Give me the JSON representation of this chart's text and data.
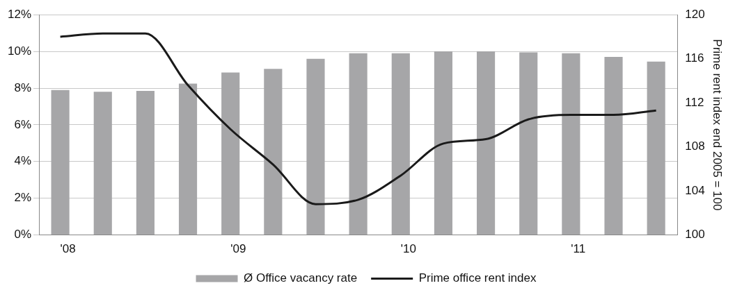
{
  "chart_data": {
    "type": "bar",
    "categories": [
      "'08",
      null,
      null,
      null,
      "'09",
      null,
      null,
      null,
      "'10",
      null,
      null,
      null,
      "'11",
      null,
      null
    ],
    "series": [
      {
        "name": "Ø Office vacancy rate",
        "color": "#a6a6a8",
        "values": [
          7.9,
          7.8,
          7.85,
          8.25,
          8.85,
          9.05,
          9.6,
          9.9,
          9.9,
          10.0,
          10.0,
          9.95,
          9.9,
          9.7,
          9.45
        ]
      },
      {
        "name": "Prime office rent index",
        "type": "line",
        "axis": "y2",
        "color": "#1a1a1a",
        "values": [
          118.0,
          118.3,
          118.3,
          113.6,
          109.6,
          106.4,
          102.8,
          103.2,
          105.4,
          108.3,
          108.7,
          110.5,
          110.9,
          110.9,
          111.3
        ]
      }
    ],
    "ylim": [
      0,
      12
    ],
    "yticks": [
      {
        "value": 0,
        "label": "0%"
      },
      {
        "value": 2,
        "label": "2%"
      },
      {
        "value": 4,
        "label": "4%"
      },
      {
        "value": 6,
        "label": "6%"
      },
      {
        "value": 8,
        "label": "8%"
      },
      {
        "value": 10,
        "label": "10%"
      },
      {
        "value": 12,
        "label": "12%"
      }
    ],
    "y2lim": [
      100,
      120
    ],
    "y2ticks": [
      100,
      104,
      108,
      112,
      116,
      120
    ],
    "y2label": "Prime rent index end 2005 = 100",
    "grid": "y",
    "legend": "bottom",
    "marker": "none",
    "line_style": "solid"
  }
}
